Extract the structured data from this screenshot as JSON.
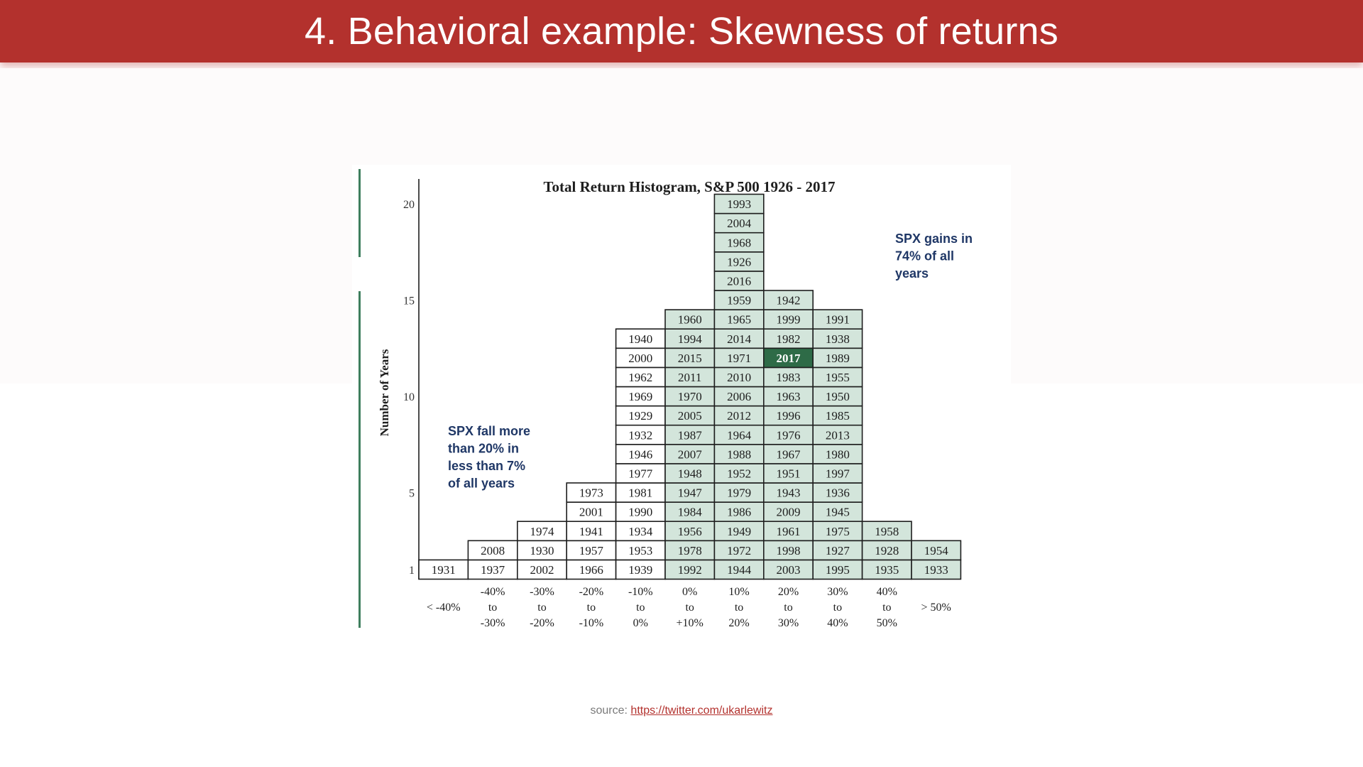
{
  "slide": {
    "title": "4. Behavioral example: Skewness of returns",
    "source_label": "source:",
    "source_link": "https://twitter.com/ukarlewitz"
  },
  "chart_data": {
    "type": "table",
    "title": "Total Return Histogram, S&P 500 1926 - 2017",
    "ylabel": "Number of Years",
    "yticks": [
      "20",
      "15",
      "10",
      "5",
      "1"
    ],
    "columns": [
      {
        "label": [
          "< -40%"
        ],
        "years": [
          "1931"
        ],
        "shaded": false
      },
      {
        "label": [
          "-40%",
          "to",
          "-30%"
        ],
        "years": [
          "1937",
          "2008"
        ],
        "shaded": false
      },
      {
        "label": [
          "-30%",
          "to",
          "-20%"
        ],
        "years": [
          "2002",
          "1930",
          "1974"
        ],
        "shaded": false
      },
      {
        "label": [
          "-20%",
          "to",
          "-10%"
        ],
        "years": [
          "1966",
          "1957",
          "1941",
          "2001",
          "1973"
        ],
        "shaded": false
      },
      {
        "label": [
          "-10%",
          "to",
          "0%"
        ],
        "years": [
          "1939",
          "1953",
          "1934",
          "1990",
          "1981",
          "1977",
          "1946",
          "1932",
          "1929",
          "1969",
          "1962",
          "2000",
          "1940"
        ],
        "shaded": false
      },
      {
        "label": [
          "0%",
          "to",
          "+10%"
        ],
        "years": [
          "1992",
          "1978",
          "1956",
          "1984",
          "1947",
          "1948",
          "2007",
          "1987",
          "2005",
          "1970",
          "2011",
          "2015",
          "1994",
          "1960"
        ],
        "shaded": true
      },
      {
        "label": [
          "10%",
          "to",
          "20%"
        ],
        "years": [
          "1944",
          "1972",
          "1949",
          "1986",
          "1979",
          "1952",
          "1988",
          "1964",
          "2012",
          "2006",
          "2010",
          "1971",
          "2014",
          "1965",
          "1959",
          "2016",
          "1926",
          "1968",
          "2004",
          "1993"
        ],
        "shaded": true
      },
      {
        "label": [
          "20%",
          "to",
          "30%"
        ],
        "years": [
          "2003",
          "1998",
          "1961",
          "2009",
          "1943",
          "1951",
          "1967",
          "1976",
          "1996",
          "1963",
          "1983",
          "2017",
          "1982",
          "1999",
          "1942"
        ],
        "shaded": true
      },
      {
        "label": [
          "30%",
          "to",
          "40%"
        ],
        "years": [
          "1995",
          "1927",
          "1975",
          "1945",
          "1936",
          "1997",
          "1980",
          "2013",
          "1985",
          "1950",
          "1955",
          "1989",
          "1938",
          "1991"
        ],
        "shaded": true
      },
      {
        "label": [
          "40%",
          "to",
          "50%"
        ],
        "years": [
          "1935",
          "1928",
          "1958"
        ],
        "shaded": true
      },
      {
        "label": [
          "> 50%"
        ],
        "years": [
          "1933",
          "1954"
        ],
        "shaded": true
      }
    ],
    "highlight_year": "2017",
    "annotations": [
      {
        "lines": [
          "SPX gains in",
          "74% of all",
          "years"
        ],
        "anchor": "upper-right"
      },
      {
        "lines": [
          "SPX fall more",
          "than 20% in",
          "less than 7%",
          "of all years"
        ],
        "anchor": "left"
      }
    ],
    "colors": {
      "shaded_cell": "#d3e5db",
      "highlight_cell": "#2e6b47",
      "plain_cell": "#ffffff",
      "cell_border": "#1e1e1e",
      "annotation_text": "#1f3766",
      "axis_line": "#3f7f5e"
    }
  }
}
